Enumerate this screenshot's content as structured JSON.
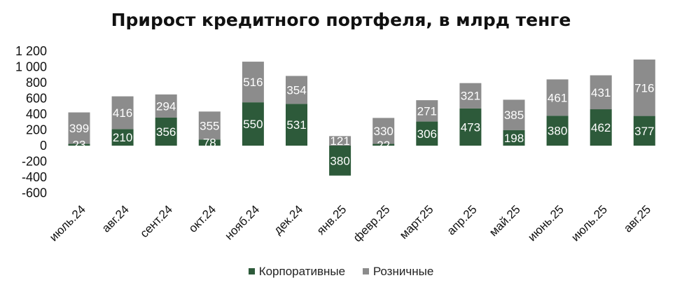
{
  "chart_data": {
    "type": "bar",
    "stacked": true,
    "title": "Прирост кредитного портфеля, в млрд тенге",
    "categories": [
      "июль.24",
      "авг.24",
      "сент.24",
      "окт.24",
      "нояб.24",
      "дек.24",
      "янв.25",
      "февр.25",
      "март.25",
      "апр.25",
      "май.25",
      "июнь.25",
      "июль.25",
      "авг.25"
    ],
    "series": [
      {
        "name": "Корпоративные",
        "color": "#2d5a3a",
        "values": [
          23,
          210,
          356,
          78,
          550,
          531,
          -380,
          22,
          306,
          473,
          198,
          380,
          462,
          377
        ]
      },
      {
        "name": "Розничные",
        "color": "#8c8c8c",
        "values": [
          399,
          416,
          294,
          355,
          516,
          354,
          121,
          330,
          271,
          321,
          385,
          461,
          431,
          716
        ]
      }
    ],
    "yticks": [
      "1 200",
      "1 000",
      "800",
      "600",
      "400",
      "200",
      "0",
      "-200",
      "-400",
      "-600"
    ],
    "ylim": [
      -600,
      1200
    ],
    "grid": false,
    "legend_position": "bottom"
  }
}
